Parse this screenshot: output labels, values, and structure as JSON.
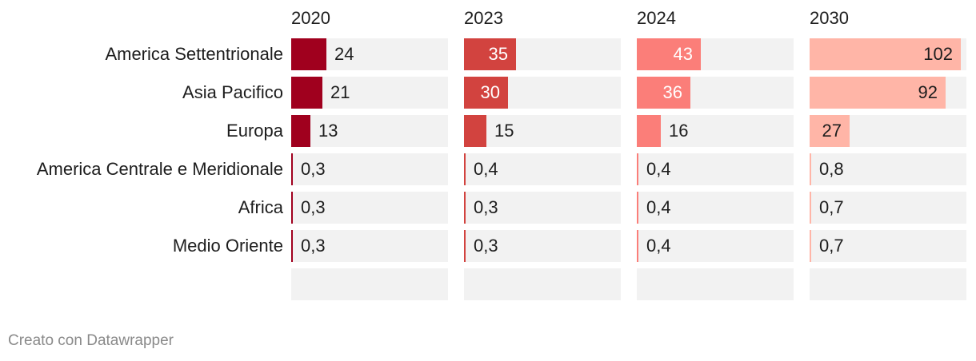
{
  "chart_data": {
    "type": "bar",
    "categories": [
      "America Settentrionale",
      "Asia Pacifico",
      "Europa",
      "America Centrale e Meridionale",
      "Africa",
      "Medio Oriente"
    ],
    "series": [
      {
        "name": "2020",
        "color": "#a0001e",
        "values": [
          24,
          21,
          13,
          0.3,
          0.3,
          0.3
        ],
        "labels": [
          "24",
          "21",
          "13",
          "0,3",
          "0,3",
          "0,3"
        ]
      },
      {
        "name": "2023",
        "color": "#d2433f",
        "values": [
          35,
          30,
          15,
          0.4,
          0.3,
          0.3
        ],
        "labels": [
          "35",
          "30",
          "15",
          "0,4",
          "0,3",
          "0,3"
        ]
      },
      {
        "name": "2024",
        "color": "#fb7e79",
        "values": [
          43,
          36,
          16,
          0.4,
          0.4,
          0.4
        ],
        "labels": [
          "43",
          "36",
          "16",
          "0,4",
          "0,4",
          "0,4"
        ]
      },
      {
        "name": "2030",
        "color": "#ffb5a7",
        "values": [
          102,
          92,
          27,
          0.8,
          0.7,
          0.7
        ],
        "labels": [
          "102",
          "92",
          "27",
          "0,8",
          "0,7",
          "0,7"
        ]
      }
    ],
    "xlim": [
      0,
      106
    ],
    "legend": "none"
  },
  "footer": "Creato con Datawrapper"
}
